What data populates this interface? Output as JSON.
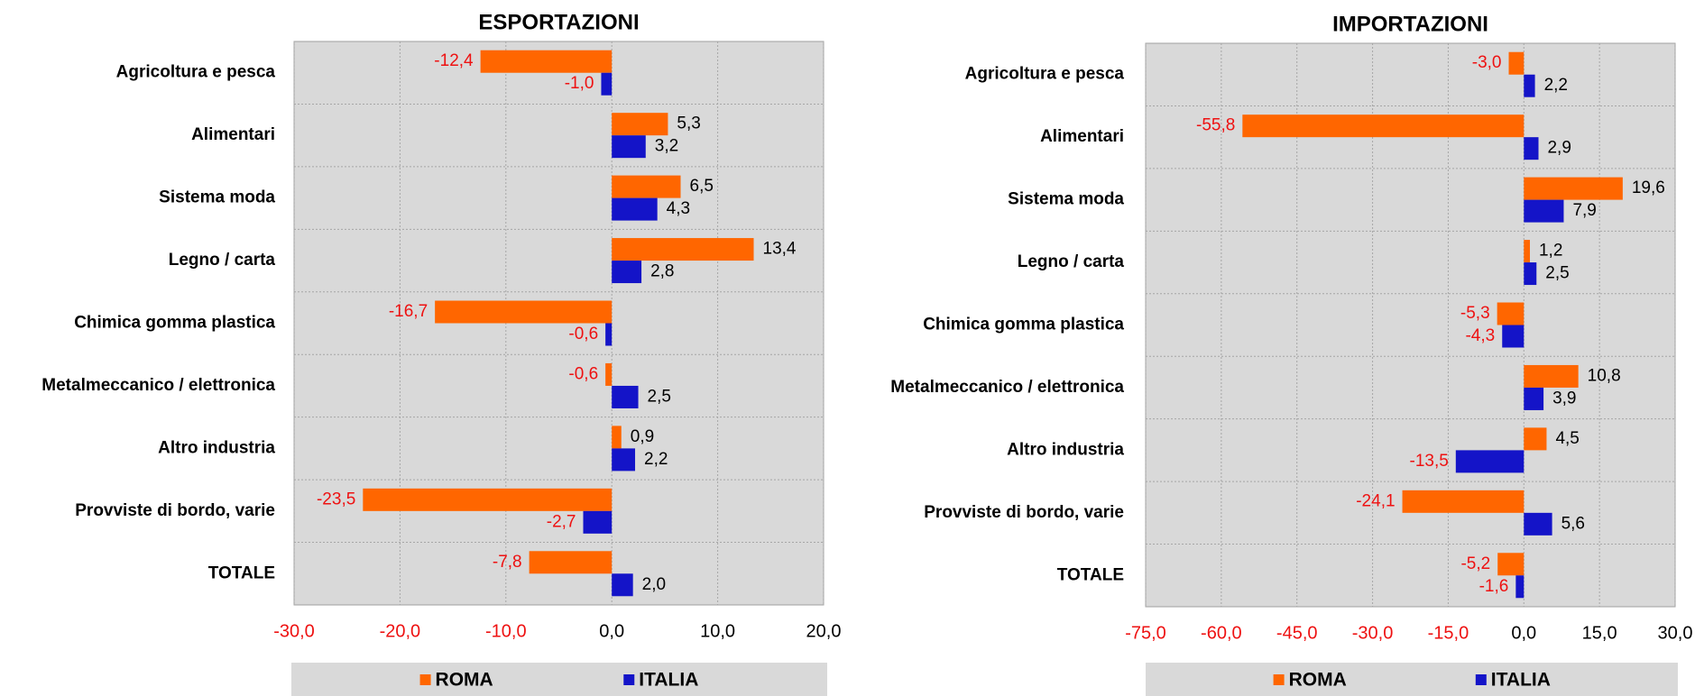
{
  "chart_data": [
    {
      "type": "bar",
      "orientation": "horizontal",
      "title": "ESPORTAZIONI",
      "categories": [
        "Agricoltura e pesca",
        "Alimentari",
        "Sistema moda",
        "Legno / carta",
        "Chimica gomma plastica",
        "Metalmeccanico / elettronica",
        "Altro industria",
        "Provviste di bordo, varie",
        "TOTALE"
      ],
      "series": [
        {
          "name": "ROMA",
          "color": "#ff6600",
          "values": [
            -12.4,
            5.3,
            6.5,
            13.4,
            -16.7,
            -0.6,
            0.9,
            -23.5,
            -7.8
          ],
          "value_labels": [
            "-12,4",
            "5,3",
            "6,5",
            "13,4",
            "-16,7",
            "-0,6",
            "0,9",
            "-23,5",
            "-7,8"
          ]
        },
        {
          "name": "ITALIA",
          "color": "#1414c8",
          "values": [
            -1.0,
            3.2,
            4.3,
            2.8,
            -0.6,
            2.5,
            2.2,
            -2.7,
            2.0
          ],
          "value_labels": [
            "-1,0",
            "3,2",
            "4,3",
            "2,8",
            "-0,6",
            "2,5",
            "2,2",
            "-2,7",
            "2,0"
          ]
        }
      ],
      "xlim": [
        -30,
        20
      ],
      "xticks": [
        {
          "value": -30,
          "label": "-30,0"
        },
        {
          "value": -20,
          "label": "-20,0"
        },
        {
          "value": -10,
          "label": "-10,0"
        },
        {
          "value": 0,
          "label": "0,0"
        },
        {
          "value": 10,
          "label": "10,0"
        },
        {
          "value": 20,
          "label": "20,0"
        }
      ],
      "grid": true
    },
    {
      "type": "bar",
      "orientation": "horizontal",
      "title": "IMPORTAZIONI",
      "categories": [
        "Agricoltura e pesca",
        "Alimentari",
        "Sistema moda",
        "Legno / carta",
        "Chimica gomma plastica",
        "Metalmeccanico / elettronica",
        "Altro industria",
        "Provviste di bordo, varie",
        "TOTALE"
      ],
      "series": [
        {
          "name": "ROMA",
          "color": "#ff6600",
          "values": [
            -3.0,
            -55.8,
            19.6,
            1.2,
            -5.3,
            10.8,
            4.5,
            -24.1,
            -5.2
          ],
          "value_labels": [
            "-3,0",
            "-55,8",
            "19,6",
            "1,2",
            "-5,3",
            "10,8",
            "4,5",
            "-24,1",
            "-5,2"
          ]
        },
        {
          "name": "ITALIA",
          "color": "#1414c8",
          "values": [
            2.2,
            2.9,
            7.9,
            2.5,
            -4.3,
            3.9,
            -13.5,
            5.6,
            -1.6
          ],
          "value_labels": [
            "2,2",
            "2,9",
            "7,9",
            "2,5",
            "-4,3",
            "3,9",
            "-13,5",
            "5,6",
            "-1,6"
          ]
        }
      ],
      "xlim": [
        -75,
        30
      ],
      "xticks": [
        {
          "value": -75,
          "label": "-75,0"
        },
        {
          "value": -60,
          "label": "-60,0"
        },
        {
          "value": -45,
          "label": "-45,0"
        },
        {
          "value": -30,
          "label": "-30,0"
        },
        {
          "value": -15,
          "label": "-15,0"
        },
        {
          "value": 0,
          "label": "0,0"
        },
        {
          "value": 15,
          "label": "15,0"
        },
        {
          "value": 30,
          "label": "30,0"
        }
      ],
      "grid": true
    }
  ]
}
